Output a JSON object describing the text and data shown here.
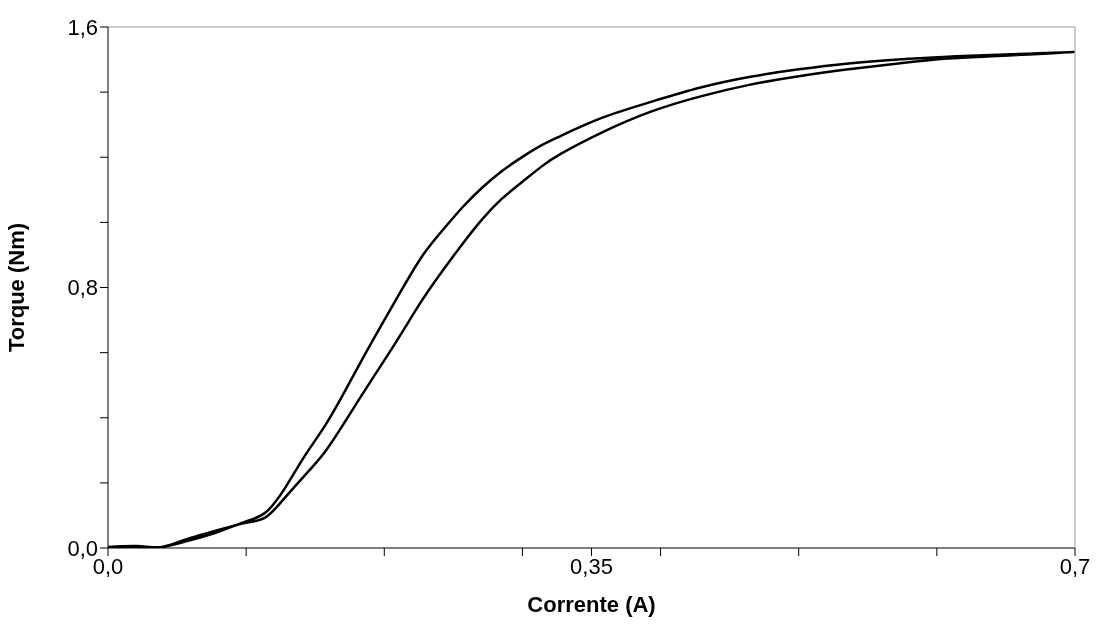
{
  "chart_data": {
    "type": "line",
    "xlabel": "Corrente (A)",
    "ylabel": "Torque (Nm)",
    "xlim": [
      0,
      0.7
    ],
    "ylim": [
      0,
      1.6
    ],
    "xticks": [
      {
        "value": 0,
        "label": "0,0"
      },
      {
        "value": 0.1,
        "label": null
      },
      {
        "value": 0.2,
        "label": null
      },
      {
        "value": 0.3,
        "label": null
      },
      {
        "value": 0.35,
        "label": "0,35"
      },
      {
        "value": 0.4,
        "label": null
      },
      {
        "value": 0.5,
        "label": null
      },
      {
        "value": 0.6,
        "label": null
      },
      {
        "value": 0.7,
        "label": "0,7"
      }
    ],
    "yticks": [
      {
        "value": 0,
        "label": "0,0"
      },
      {
        "value": 0.2,
        "label": null
      },
      {
        "value": 0.4,
        "label": null
      },
      {
        "value": 0.6,
        "label": null
      },
      {
        "value": 0.8,
        "label": "0,8"
      },
      {
        "value": 1.0,
        "label": null
      },
      {
        "value": 1.2,
        "label": null
      },
      {
        "value": 1.4,
        "label": null
      },
      {
        "value": 1.6,
        "label": "1,6"
      }
    ],
    "grid": false,
    "legend": false,
    "marker": "none",
    "line_style": "solid",
    "series": [
      {
        "color": "#000000",
        "x": [
          0,
          0.021,
          0.039,
          0.057,
          0.078,
          0.099,
          0.114,
          0.128,
          0.142,
          0.157,
          0.171,
          0.185,
          0.2,
          0.214,
          0.228,
          0.243,
          0.257,
          0.271,
          0.285,
          0.3,
          0.314,
          0.328,
          0.357,
          0.393,
          0.429,
          0.465,
          0.5,
          0.536,
          0.572,
          0.608,
          0.644,
          0.7,
          0.644,
          0.608,
          0.572,
          0.536,
          0.5,
          0.465,
          0.429,
          0.393,
          0.357,
          0.328,
          0.314,
          0.3,
          0.285,
          0.271,
          0.257,
          0.243,
          0.228,
          0.214,
          0.2,
          0.185,
          0.171,
          0.157,
          0.142,
          0.128,
          0.114,
          0.099,
          0.078,
          0.057,
          0.039,
          0.021,
          0
        ],
        "values": [
          0,
          0,
          0.003,
          0.027,
          0.053,
          0.077,
          0.094,
          0.154,
          0.221,
          0.295,
          0.384,
          0.478,
          0.576,
          0.67,
          0.765,
          0.856,
          0.936,
          1.01,
          1.072,
          1.125,
          1.172,
          1.211,
          1.275,
          1.34,
          1.387,
          1.423,
          1.449,
          1.47,
          1.488,
          1.503,
          1.511,
          1.523,
          1.515,
          1.509,
          1.5,
          1.488,
          1.47,
          1.447,
          1.414,
          1.37,
          1.32,
          1.266,
          1.237,
          1.201,
          1.157,
          1.107,
          1.048,
          0.98,
          0.9,
          0.803,
          0.7,
          0.587,
          0.478,
          0.375,
          0.28,
          0.183,
          0.109,
          0.08,
          0.047,
          0.021,
          0.003,
          0.006,
          0.003
        ]
      }
    ]
  }
}
